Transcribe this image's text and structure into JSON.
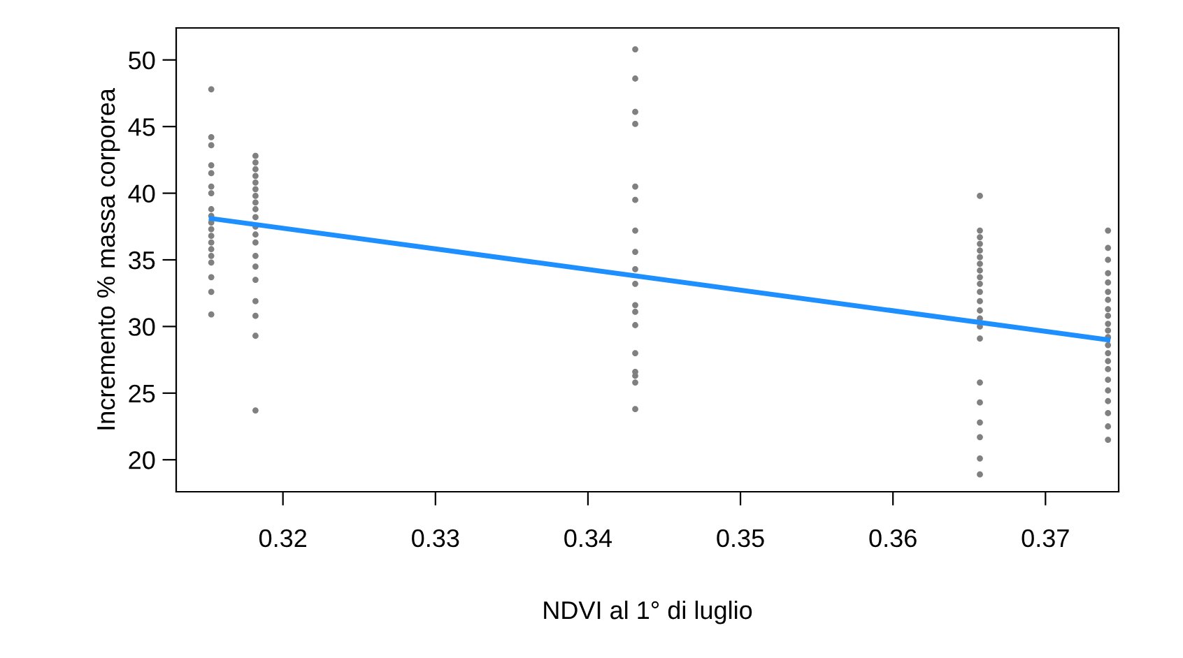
{
  "chart_data": {
    "type": "scatter",
    "xlabel": "NDVI al 1° di luglio",
    "ylabel": "Incremento % massa corporea",
    "xlim": [
      0.313,
      0.3748
    ],
    "ylim": [
      17.6,
      52.4
    ],
    "xticks": [
      0.32,
      0.33,
      0.34,
      0.35,
      0.36,
      0.37
    ],
    "yticks": [
      20,
      25,
      30,
      35,
      40,
      45,
      50
    ],
    "grid": false,
    "legend": false,
    "series": [
      {
        "marker": "circle",
        "color": "#808080",
        "x": [
          0.3153,
          0.3153,
          0.3153,
          0.3153,
          0.3153,
          0.3153,
          0.3153,
          0.3153,
          0.3153,
          0.3153,
          0.3153,
          0.3153,
          0.3153,
          0.3153,
          0.3153,
          0.3153,
          0.3153,
          0.3153,
          0.3153,
          0.3182,
          0.3182,
          0.3182,
          0.3182,
          0.3182,
          0.3182,
          0.3182,
          0.3182,
          0.3182,
          0.3182,
          0.3182,
          0.3182,
          0.3182,
          0.3182,
          0.3182,
          0.3182,
          0.3182,
          0.3182,
          0.3182,
          0.3182,
          0.3431,
          0.3431,
          0.3431,
          0.3431,
          0.3431,
          0.3431,
          0.3431,
          0.3431,
          0.3431,
          0.3431,
          0.3431,
          0.3431,
          0.3431,
          0.3431,
          0.3431,
          0.3431,
          0.3431,
          0.3431,
          0.3657,
          0.3657,
          0.3657,
          0.3657,
          0.3657,
          0.3657,
          0.3657,
          0.3657,
          0.3657,
          0.3657,
          0.3657,
          0.3657,
          0.3657,
          0.3657,
          0.3657,
          0.3657,
          0.3657,
          0.3657,
          0.3657,
          0.3657,
          0.3657,
          0.3657,
          0.3741,
          0.3741,
          0.3741,
          0.3741,
          0.3741,
          0.3741,
          0.3741,
          0.3741,
          0.3741,
          0.3741,
          0.3741,
          0.3741,
          0.3741,
          0.3741,
          0.3741,
          0.3741,
          0.3741,
          0.3741,
          0.3741,
          0.3741,
          0.3741,
          0.3741
        ],
        "values": [
          47.8,
          44.2,
          43.6,
          42.1,
          41.5,
          40.5,
          40.0,
          38.8,
          38.3,
          37.8,
          37.3,
          36.8,
          36.3,
          35.8,
          35.3,
          34.8,
          33.7,
          32.6,
          30.9,
          42.8,
          42.3,
          41.8,
          41.3,
          40.8,
          40.3,
          39.8,
          39.3,
          38.8,
          38.2,
          37.5,
          36.9,
          36.3,
          35.3,
          34.5,
          33.5,
          31.9,
          30.8,
          29.3,
          23.7,
          50.8,
          48.6,
          46.1,
          45.2,
          40.5,
          39.5,
          37.2,
          35.6,
          34.3,
          33.2,
          31.6,
          31.1,
          30.1,
          28.0,
          26.6,
          26.3,
          25.8,
          23.8,
          39.8,
          37.2,
          36.7,
          36.2,
          35.7,
          35.2,
          34.7,
          34.2,
          33.7,
          33.2,
          32.6,
          31.9,
          31.2,
          30.6,
          30.0,
          29.1,
          25.8,
          24.3,
          22.8,
          21.7,
          20.1,
          18.9,
          37.2,
          35.9,
          35.0,
          34.0,
          33.3,
          32.6,
          32.0,
          31.3,
          30.8,
          30.2,
          29.7,
          29.2,
          28.6,
          28.0,
          27.4,
          26.8,
          26.0,
          25.2,
          24.4,
          23.5,
          22.5,
          21.5
        ]
      },
      {
        "type": "line",
        "marker": "none",
        "color": "#1e8fff",
        "x": [
          0.3153,
          0.3741
        ],
        "values": [
          38.1,
          29.0
        ]
      }
    ]
  }
}
